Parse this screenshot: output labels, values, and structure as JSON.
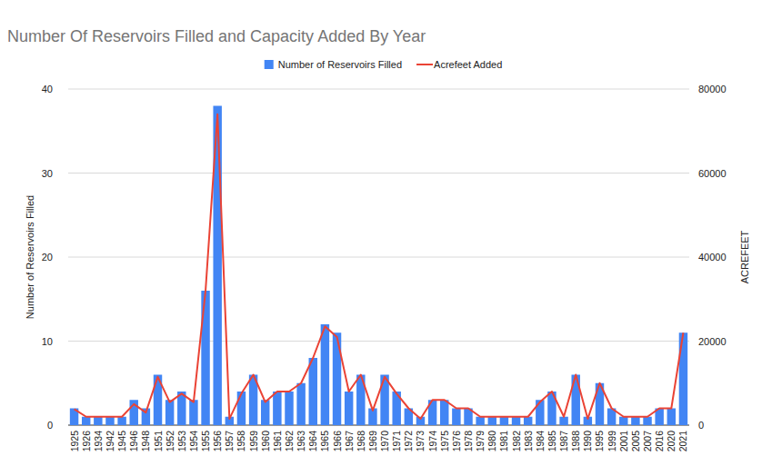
{
  "chart_data": {
    "type": "bar",
    "title": "Number Of Reservoirs Filled and Capacity Added By Year",
    "y_label": "Number of Reservoirs Filled",
    "y2_label": "ACREFEET",
    "categories": [
      "1925",
      "1926",
      "1934",
      "1942",
      "1945",
      "1946",
      "1948",
      "1951",
      "1952",
      "1953",
      "1954",
      "1955",
      "1956",
      "1957",
      "1958",
      "1959",
      "1960",
      "1961",
      "1962",
      "1963",
      "1964",
      "1965",
      "1966",
      "1967",
      "1968",
      "1969",
      "1970",
      "1971",
      "1972",
      "1973",
      "1974",
      "1975",
      "1976",
      "1978",
      "1979",
      "1980",
      "1981",
      "1982",
      "1983",
      "1984",
      "1985",
      "1987",
      "1988",
      "1990",
      "1995",
      "1999",
      "2001",
      "2005",
      "2007",
      "2016",
      "2020",
      "2021"
    ],
    "series": [
      {
        "name": "Number of Reservoirs Filled",
        "type": "bar",
        "color": "#4285f4",
        "values": [
          2,
          1,
          1,
          1,
          1,
          3,
          2,
          6,
          3,
          4,
          3,
          16,
          38,
          1,
          4,
          6,
          3,
          4,
          4,
          5,
          8,
          12,
          11,
          4,
          6,
          2,
          6,
          4,
          2,
          1,
          3,
          3,
          2,
          2,
          1,
          1,
          1,
          1,
          1,
          3,
          4,
          1,
          6,
          1,
          5,
          2,
          1,
          1,
          1,
          2,
          2,
          11
        ]
      },
      {
        "name": "Acrefeet Added",
        "type": "line",
        "axis": "y2",
        "color": "#ea4335",
        "values": [
          3800,
          2000,
          2000,
          2000,
          2000,
          5000,
          3000,
          11500,
          5500,
          7500,
          5500,
          32000,
          74000,
          1500,
          7500,
          12000,
          5500,
          8000,
          8000,
          10000,
          16000,
          23500,
          21000,
          8000,
          12000,
          3500,
          11500,
          7500,
          4000,
          1500,
          6000,
          6000,
          4000,
          4000,
          2000,
          2000,
          2000,
          2000,
          2000,
          5500,
          8000,
          2000,
          12000,
          1500,
          10000,
          4000,
          2000,
          2000,
          2000,
          4000,
          4000,
          22000
        ]
      }
    ],
    "ylim": [
      0,
      40
    ],
    "yticks": [
      0,
      10,
      20,
      30,
      40
    ],
    "y2lim": [
      0,
      80000
    ],
    "y2ticks": [
      0,
      20000,
      40000,
      60000,
      80000
    ],
    "grid": true,
    "legend": "top"
  }
}
